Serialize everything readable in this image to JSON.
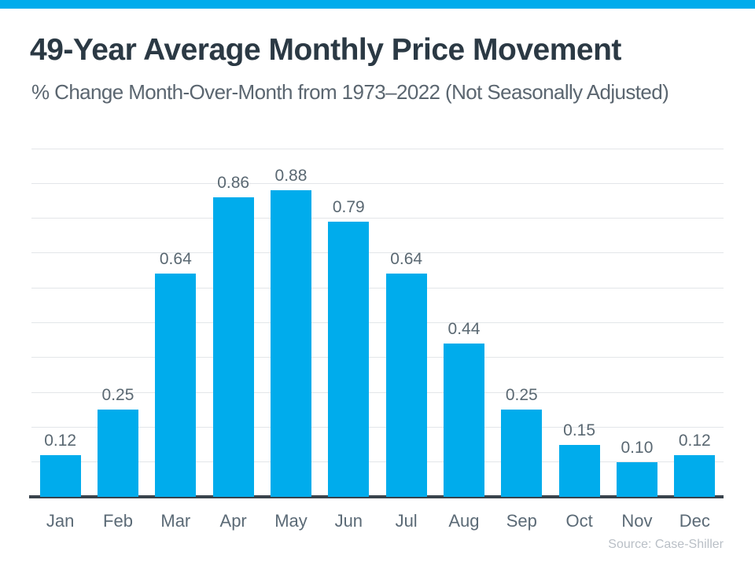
{
  "colors": {
    "accent": "#00ACEC",
    "title_text": "#2b3944",
    "subtitle_text": "#5b6670",
    "label_text": "#5a6872",
    "axis_line": "#39434c",
    "gridline": "#e3e6e9",
    "source_text": "#b9bfc6"
  },
  "header": {
    "title": "49-Year Average Monthly Price Movement",
    "subtitle": "% Change Month-Over-Month from 1973–2022 (Not Seasonally Adjusted)"
  },
  "chart_data": {
    "type": "bar",
    "title": "49-Year Average Monthly Price Movement",
    "subtitle": "% Change Month-Over-Month from 1973–2022 (Not Seasonally Adjusted)",
    "categories": [
      "Jan",
      "Feb",
      "Mar",
      "Apr",
      "May",
      "Jun",
      "Jul",
      "Aug",
      "Sep",
      "Oct",
      "Nov",
      "Dec"
    ],
    "values": [
      0.12,
      0.25,
      0.64,
      0.86,
      0.88,
      0.79,
      0.64,
      0.44,
      0.25,
      0.15,
      0.1,
      0.12
    ],
    "data_labels": [
      "0.12",
      "0.25",
      "0.64",
      "0.86",
      "0.88",
      "0.79",
      "0.64",
      "0.44",
      "0.25",
      "0.15",
      "0.10",
      "0.12"
    ],
    "xlabel": "",
    "ylabel": "% Change Month-Over-Month",
    "ylim": [
      0,
      1.0
    ],
    "gridline_step": 0.1,
    "grid": "horizontal only",
    "legend": "none",
    "bar_color": "#00ACEC"
  },
  "footer": {
    "source": "Source: Case-Shiller"
  }
}
